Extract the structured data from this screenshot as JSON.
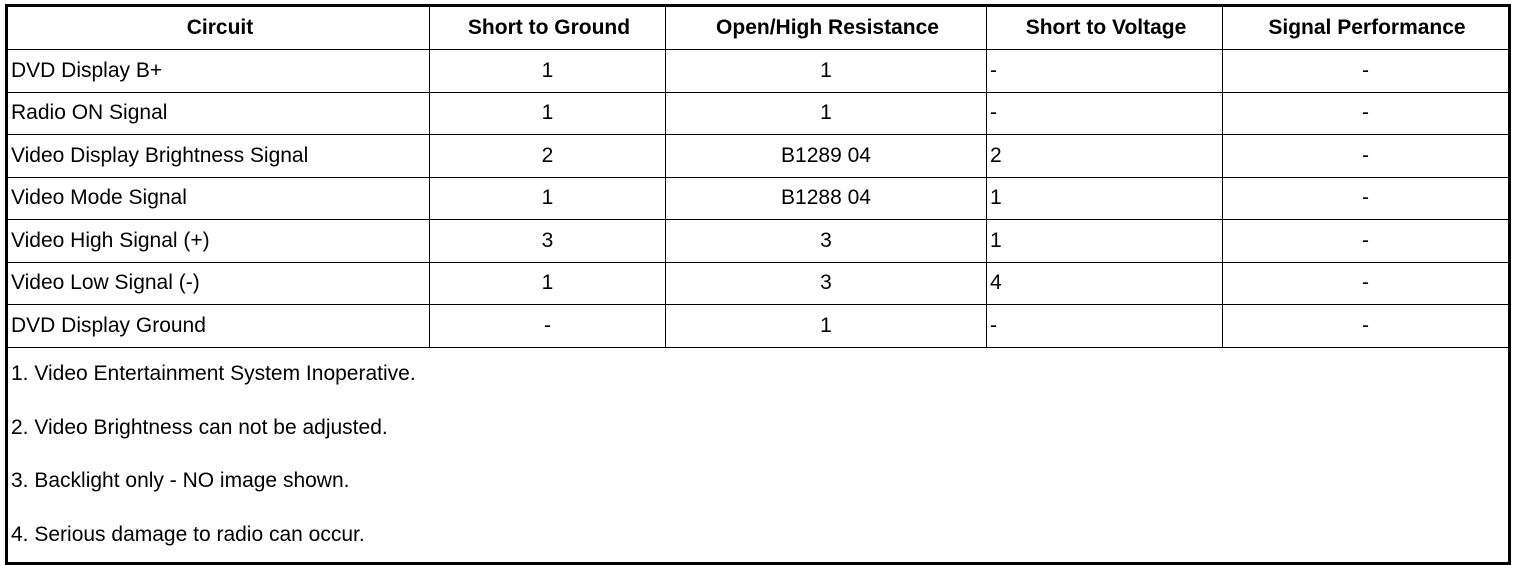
{
  "headers": [
    "Circuit",
    "Short to Ground",
    "Open/High Resistance",
    "Short to Voltage",
    "Signal Performance"
  ],
  "rows": [
    {
      "circuit": "DVD Display B+",
      "ground": "1",
      "open": "1",
      "voltage": "-",
      "signal": "-"
    },
    {
      "circuit": "Radio ON Signal",
      "ground": "1",
      "open": "1",
      "voltage": "-",
      "signal": "-"
    },
    {
      "circuit": "Video Display Brightness Signal",
      "ground": "2",
      "open": "B1289 04",
      "voltage": "2",
      "signal": "-"
    },
    {
      "circuit": "Video Mode Signal",
      "ground": "1",
      "open": "B1288 04",
      "voltage": "1",
      "signal": "-"
    },
    {
      "circuit": "Video High Signal (+)",
      "ground": "3",
      "open": "3",
      "voltage": "1",
      "signal": "-"
    },
    {
      "circuit": "Video Low Signal (-)",
      "ground": "1",
      "open": "3",
      "voltage": "4",
      "signal": "-"
    },
    {
      "circuit": "DVD Display Ground",
      "ground": "-",
      "open": "1",
      "voltage": "-",
      "signal": "-"
    }
  ],
  "notes": [
    "1. Video Entertainment System Inoperative.",
    "2. Video Brightness can not be adjusted.",
    "3. Backlight only - NO image shown.",
    "4. Serious damage to radio can occur."
  ]
}
